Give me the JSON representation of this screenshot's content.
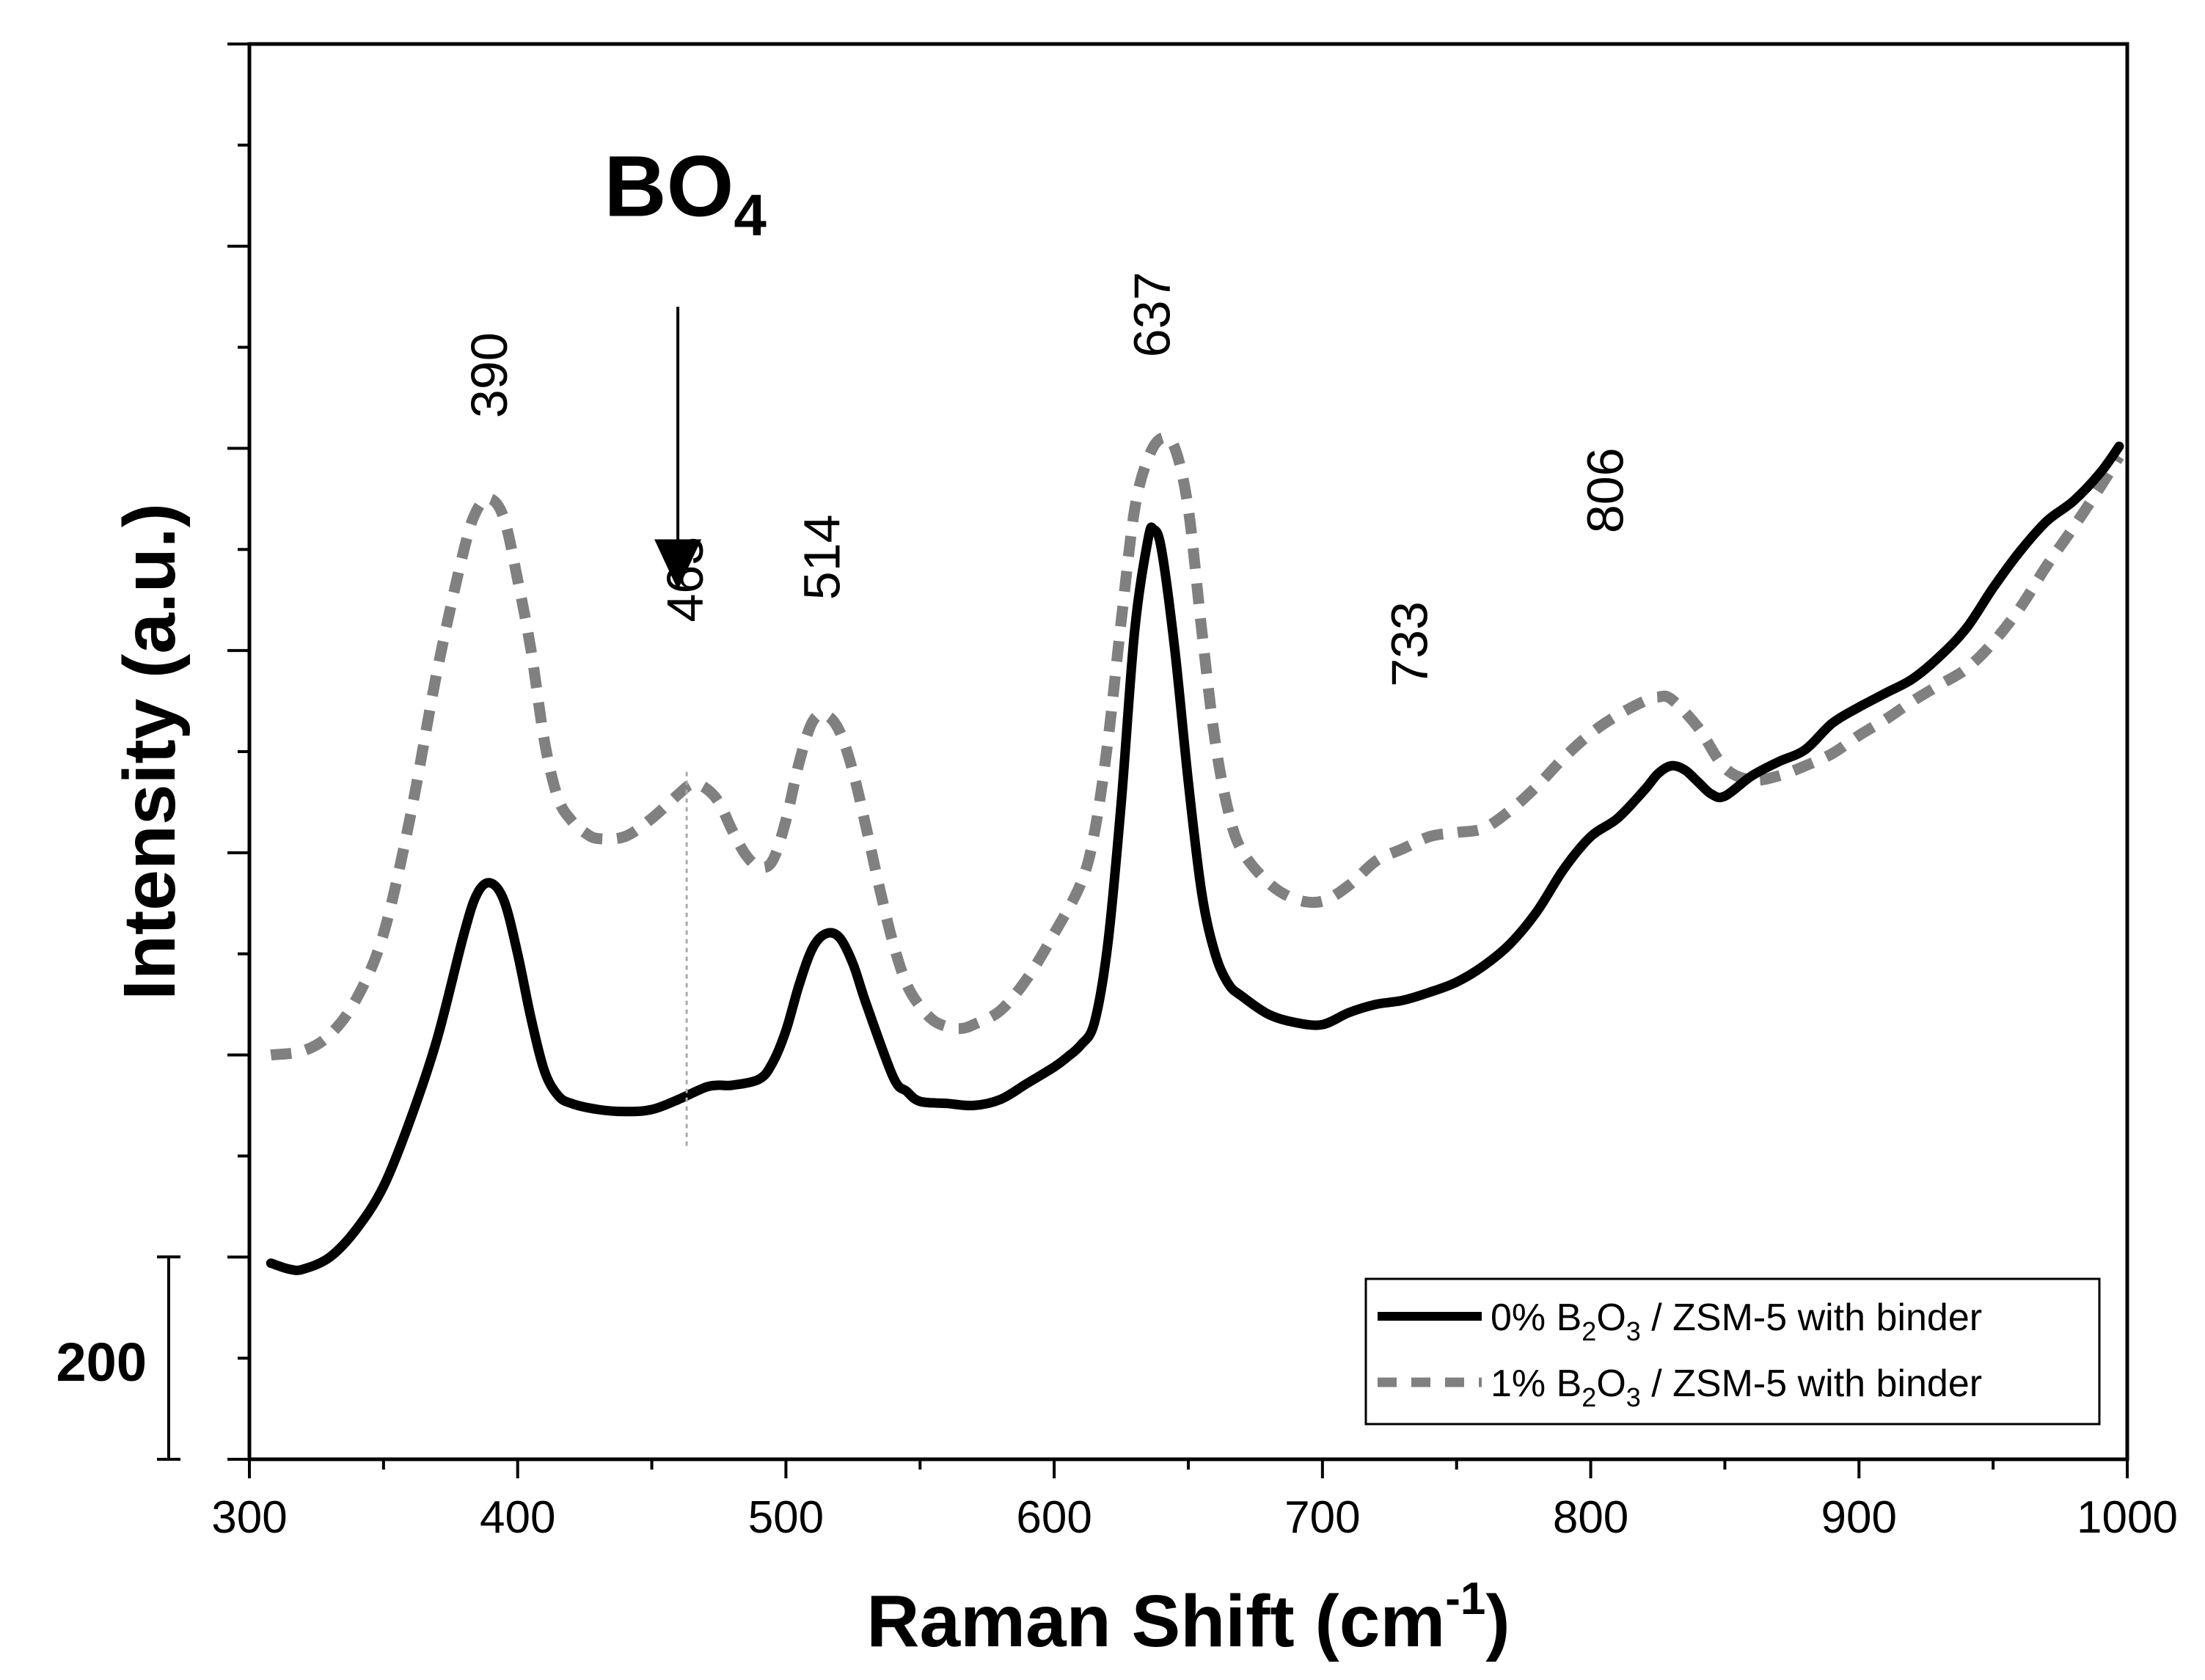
{
  "chart_data": {
    "type": "line",
    "title": "",
    "xlabel": "Raman Shift (cm",
    "xlabel_sup": "-1",
    "xlabel_suffix": ")",
    "ylabel": "Intensity (a.u.)",
    "xlim": [
      300,
      1000
    ],
    "ylim": [
      -1200,
      5800
    ],
    "x_ticks": [
      300,
      400,
      500,
      600,
      700,
      800,
      900,
      1000
    ],
    "x_tick_labels": [
      "300",
      "400",
      "500",
      "600",
      "700",
      "800",
      "900",
      "1000"
    ],
    "y_major_ticks": [
      -1200,
      -200,
      800,
      1800,
      2800,
      3800,
      4800,
      5800
    ],
    "y_tick_labels_shown": false,
    "scale_bar": {
      "label": "200",
      "from": -1200,
      "to": -200
    },
    "series": [
      {
        "name": "0% B2O3 / ZSM-5 with binder",
        "legend_parts": [
          "0% B",
          "2",
          "O",
          "3",
          " / ZSM-5 with binder"
        ],
        "style": "solid",
        "color": "#000000",
        "x": [
          308,
          315,
          320,
          330,
          340,
          350,
          360,
          370,
          380,
          385,
          390,
          395,
          400,
          405,
          410,
          415,
          420,
          430,
          440,
          450,
          460,
          470,
          475,
          480,
          490,
          495,
          500,
          505,
          510,
          515,
          520,
          525,
          530,
          540,
          545,
          550,
          560,
          570,
          580,
          590,
          600,
          605,
          610,
          615,
          620,
          625,
          630,
          635,
          637,
          640,
          645,
          650,
          655,
          660,
          665,
          670,
          680,
          690,
          700,
          710,
          720,
          730,
          740,
          750,
          760,
          770,
          780,
          790,
          800,
          810,
          820,
          825,
          830,
          835,
          840,
          845,
          850,
          860,
          870,
          880,
          890,
          900,
          910,
          920,
          930,
          940,
          950,
          960,
          970,
          980,
          990,
          997
        ],
        "values": [
          -230,
          -260,
          -260,
          -200,
          -60,
          150,
          480,
          880,
          1400,
          1600,
          1650,
          1560,
          1300,
          980,
          720,
          600,
          560,
          530,
          520,
          530,
          580,
          640,
          650,
          650,
          680,
          760,
          920,
          1150,
          1330,
          1400,
          1380,
          1250,
          1050,
          690,
          620,
          570,
          560,
          550,
          580,
          660,
          740,
          790,
          850,
          960,
          1350,
          2050,
          2900,
          3350,
          3400,
          3300,
          2800,
          2150,
          1600,
          1300,
          1150,
          1090,
          1000,
          960,
          950,
          1010,
          1050,
          1070,
          1110,
          1160,
          1240,
          1350,
          1510,
          1720,
          1880,
          1970,
          2110,
          2190,
          2230,
          2210,
          2150,
          2090,
          2080,
          2180,
          2250,
          2310,
          2440,
          2520,
          2590,
          2660,
          2770,
          2910,
          3110,
          3290,
          3440,
          3540,
          3680,
          3810
        ]
      },
      {
        "name": "1% B2O3 / ZSM-5 with binder",
        "legend_parts": [
          "1% B",
          "2",
          "O",
          "3",
          " / ZSM-5 with binder"
        ],
        "style": "dashed",
        "color": "#808080",
        "x": [
          308,
          320,
          330,
          340,
          350,
          360,
          370,
          380,
          385,
          390,
          395,
          400,
          405,
          410,
          415,
          420,
          425,
          430,
          440,
          450,
          460,
          465,
          470,
          475,
          480,
          485,
          490,
          495,
          500,
          505,
          510,
          515,
          520,
          525,
          530,
          535,
          540,
          545,
          550,
          555,
          560,
          565,
          570,
          580,
          590,
          600,
          610,
          615,
          620,
          625,
          630,
          635,
          640,
          645,
          650,
          655,
          660,
          665,
          670,
          680,
          690,
          700,
          710,
          720,
          730,
          740,
          750,
          760,
          770,
          780,
          790,
          800,
          810,
          820,
          825,
          830,
          840,
          850,
          860,
          870,
          880,
          890,
          900,
          910,
          920,
          930,
          940,
          950,
          960,
          970,
          980,
          990,
          997
        ],
        "values": [
          800,
          820,
          900,
          1080,
          1400,
          1980,
          2700,
          3300,
          3500,
          3550,
          3450,
          3150,
          2800,
          2350,
          2070,
          1960,
          1900,
          1870,
          1880,
          1970,
          2090,
          2140,
          2120,
          2050,
          1910,
          1790,
          1730,
          1760,
          1960,
          2250,
          2450,
          2480,
          2400,
          2200,
          1920,
          1620,
          1350,
          1150,
          1040,
          970,
          940,
          930,
          950,
          1020,
          1180,
          1400,
          1650,
          1900,
          2350,
          2950,
          3500,
          3750,
          3850,
          3800,
          3500,
          2900,
          2350,
          2000,
          1810,
          1650,
          1570,
          1560,
          1640,
          1760,
          1820,
          1880,
          1900,
          1920,
          2010,
          2130,
          2270,
          2390,
          2480,
          2550,
          2570,
          2560,
          2420,
          2220,
          2160,
          2180,
          2230,
          2290,
          2380,
          2460,
          2550,
          2630,
          2710,
          2840,
          3010,
          3220,
          3410,
          3610,
          3760
        ]
      }
    ],
    "annotations": {
      "peaks": [
        {
          "label": "390",
          "x": 390
        },
        {
          "label": "463",
          "x": 463
        },
        {
          "label": "514",
          "x": 514
        },
        {
          "label": "637",
          "x": 637
        },
        {
          "label": "733",
          "x": 733
        },
        {
          "label": "806",
          "x": 806
        }
      ],
      "bo4": {
        "text": "BO",
        "sub": "4",
        "x": 463
      }
    },
    "legend_position": "bottom-right"
  }
}
